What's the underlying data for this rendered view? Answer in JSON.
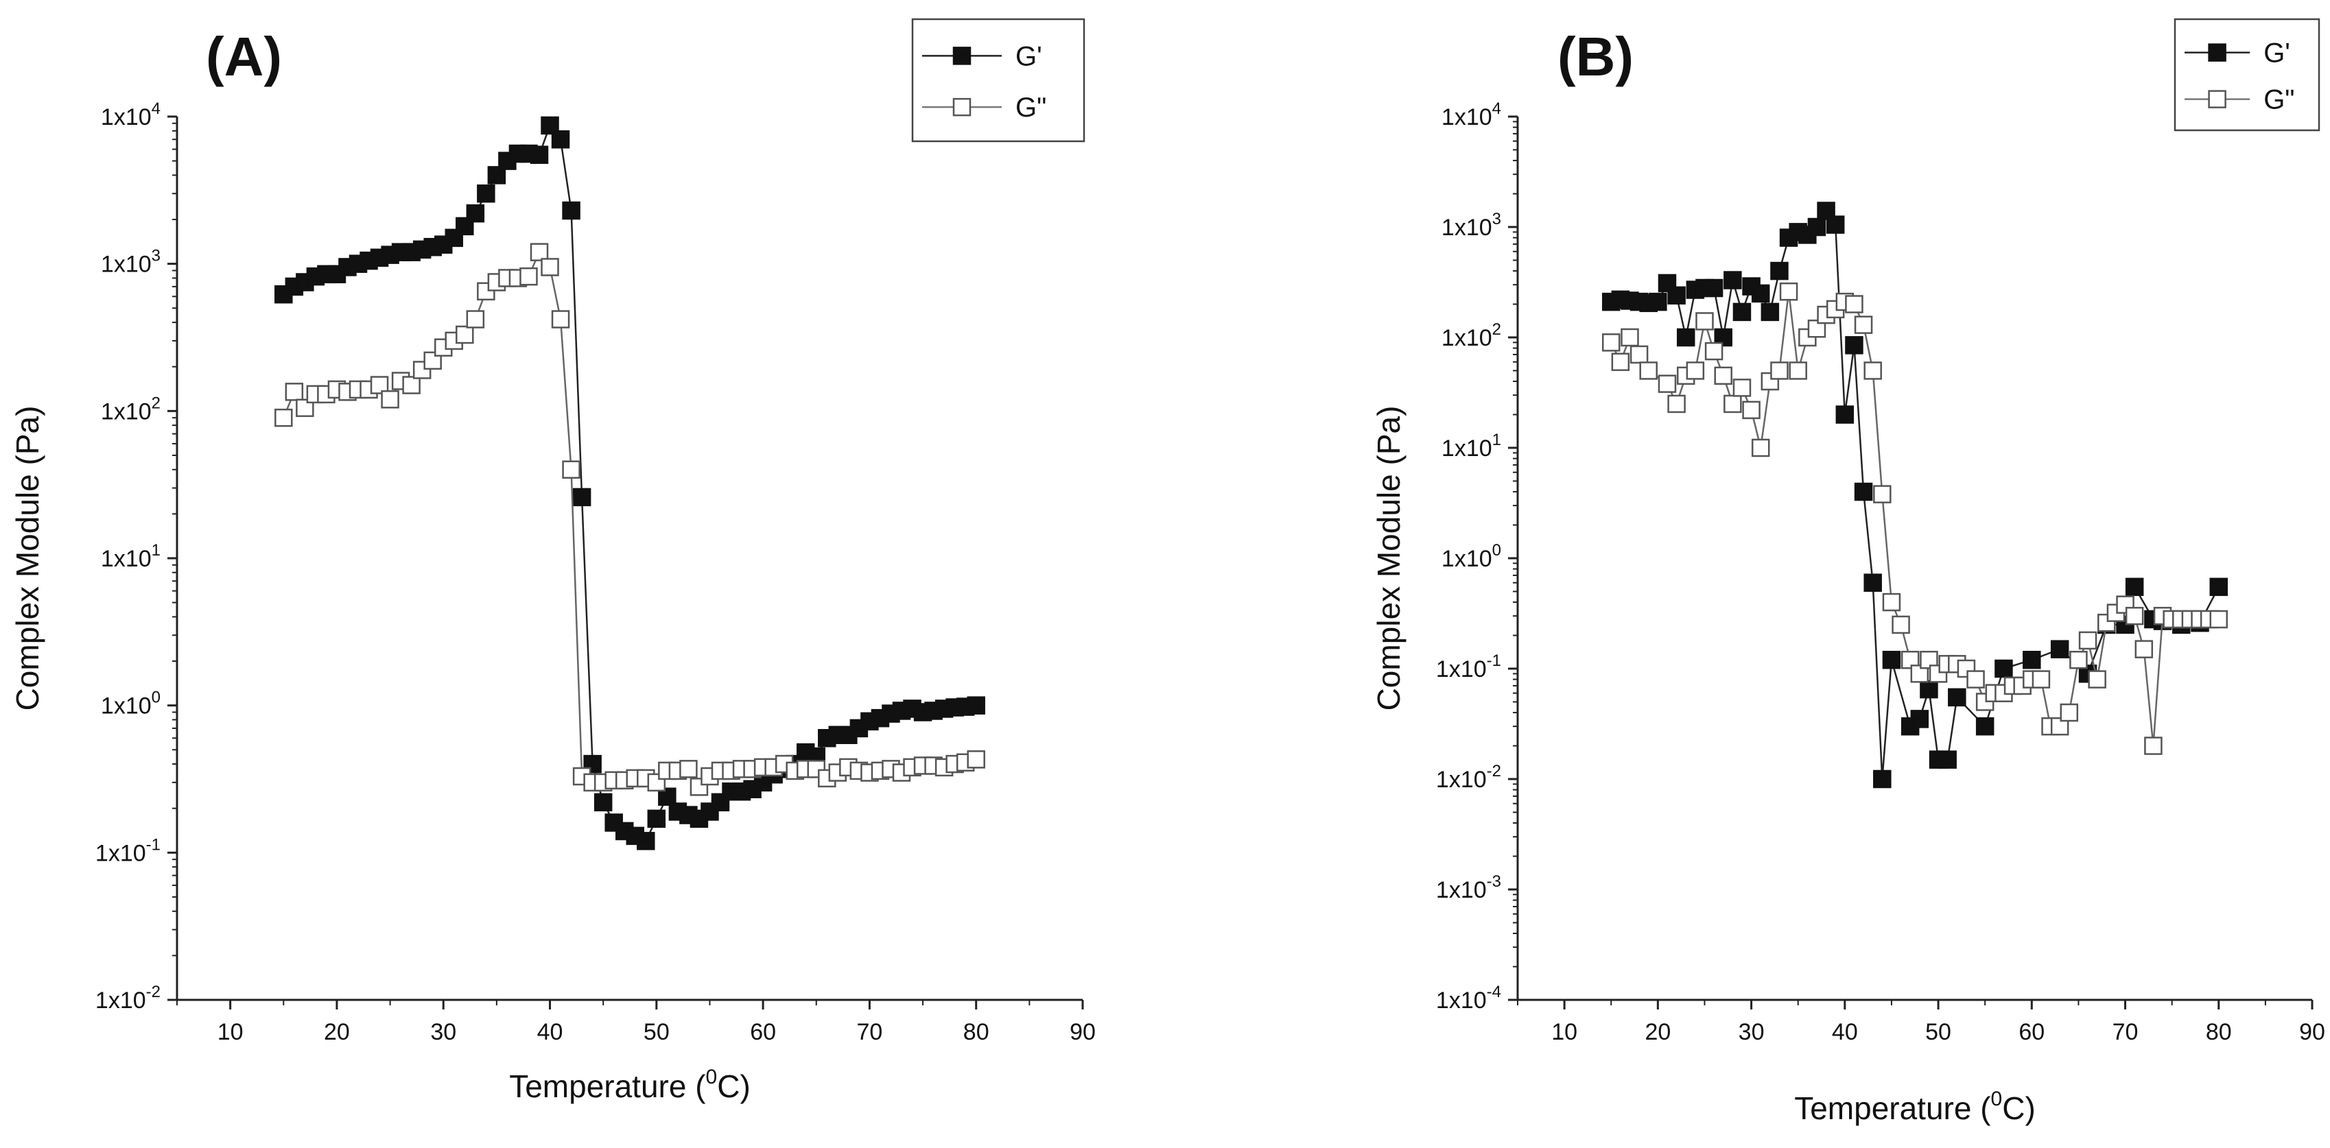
{
  "chart_data": [
    {
      "type": "scatter",
      "panel_label": "(A)",
      "xlabel": "Temperature (",
      "xlabel_sup": "0",
      "xlabel_unit": "C)",
      "ylabel": "Complex Module (Pa)",
      "y_scale": "log",
      "xlim": [
        5,
        90
      ],
      "ylim_exp": [
        -2,
        4
      ],
      "x_ticks": [
        10,
        20,
        30,
        40,
        50,
        60,
        70,
        80,
        90
      ],
      "y_ticks": [
        {
          "base": "1x10",
          "exp": "-2"
        },
        {
          "base": "1x10",
          "exp": "-1"
        },
        {
          "base": "1x10",
          "exp": "0"
        },
        {
          "base": "1x10",
          "exp": "1"
        },
        {
          "base": "1x10",
          "exp": "2"
        },
        {
          "base": "1x10",
          "exp": "3"
        },
        {
          "base": "1x10",
          "exp": "4"
        }
      ],
      "legend_position": "top-right",
      "series": [
        {
          "name": "G'",
          "marker": "filled-square",
          "x": [
            15,
            16,
            17,
            18,
            19,
            20,
            21,
            22,
            23,
            24,
            25,
            26,
            27,
            28,
            29,
            30,
            31,
            32,
            33,
            34,
            35,
            36,
            37,
            38,
            39,
            40,
            41,
            42,
            43,
            44,
            45,
            46,
            47,
            48,
            49,
            50,
            51,
            52,
            53,
            54,
            55,
            56,
            57,
            58,
            59,
            60,
            61,
            62,
            63,
            64,
            65,
            66,
            67,
            68,
            69,
            70,
            71,
            72,
            73,
            74,
            75,
            76,
            77,
            78,
            79,
            80
          ],
          "y": [
            620,
            700,
            750,
            820,
            850,
            850,
            950,
            1000,
            1050,
            1100,
            1150,
            1200,
            1200,
            1250,
            1300,
            1350,
            1500,
            1800,
            2200,
            3000,
            4000,
            5000,
            5600,
            5600,
            5500,
            8700,
            7000,
            2300,
            26,
            0.4,
            0.22,
            0.16,
            0.14,
            0.13,
            0.12,
            0.17,
            0.24,
            0.19,
            0.18,
            0.17,
            0.19,
            0.22,
            0.26,
            0.26,
            0.27,
            0.3,
            0.34,
            0.37,
            0.4,
            0.48,
            0.45,
            0.6,
            0.63,
            0.63,
            0.7,
            0.78,
            0.82,
            0.88,
            0.92,
            0.95,
            0.9,
            0.92,
            0.95,
            0.97,
            0.98,
            1.0
          ]
        },
        {
          "name": "G\"",
          "marker": "open-square",
          "x": [
            15,
            16,
            17,
            18,
            19,
            20,
            21,
            22,
            23,
            24,
            25,
            26,
            27,
            28,
            29,
            30,
            31,
            32,
            33,
            34,
            35,
            36,
            37,
            38,
            39,
            40,
            41,
            42,
            43,
            44,
            45,
            46,
            47,
            48,
            49,
            50,
            51,
            52,
            53,
            54,
            55,
            56,
            57,
            58,
            59,
            60,
            61,
            62,
            63,
            64,
            65,
            66,
            67,
            68,
            69,
            70,
            71,
            72,
            73,
            74,
            75,
            76,
            77,
            78,
            79,
            80
          ],
          "y": [
            90,
            135,
            105,
            130,
            130,
            140,
            135,
            140,
            140,
            150,
            120,
            160,
            150,
            190,
            220,
            270,
            300,
            330,
            420,
            650,
            750,
            800,
            800,
            820,
            1200,
            950,
            420,
            40,
            0.33,
            0.3,
            0.3,
            0.31,
            0.31,
            0.32,
            0.32,
            0.3,
            0.36,
            0.36,
            0.37,
            0.28,
            0.33,
            0.36,
            0.36,
            0.37,
            0.37,
            0.38,
            0.38,
            0.4,
            0.36,
            0.37,
            0.37,
            0.32,
            0.35,
            0.38,
            0.36,
            0.35,
            0.36,
            0.37,
            0.35,
            0.38,
            0.39,
            0.39,
            0.38,
            0.4,
            0.41,
            0.43
          ]
        }
      ]
    },
    {
      "type": "scatter",
      "panel_label": "(B)",
      "xlabel": "Temperature (",
      "xlabel_sup": "0",
      "xlabel_unit": "C)",
      "ylabel": "Complex Module (Pa)",
      "y_scale": "log",
      "xlim": [
        5,
        90
      ],
      "ylim_exp": [
        -4,
        4
      ],
      "x_ticks": [
        10,
        20,
        30,
        40,
        50,
        60,
        70,
        80,
        90
      ],
      "y_ticks": [
        {
          "base": "1x10",
          "exp": "-4"
        },
        {
          "base": "1x10",
          "exp": "-3"
        },
        {
          "base": "1x10",
          "exp": "-2"
        },
        {
          "base": "1x10",
          "exp": "-1"
        },
        {
          "base": "1x10",
          "exp": "0"
        },
        {
          "base": "1x10",
          "exp": "1"
        },
        {
          "base": "1x10",
          "exp": "2"
        },
        {
          "base": "1x10",
          "exp": "3"
        },
        {
          "base": "1x10",
          "exp": "4"
        }
      ],
      "legend_position": "top-right",
      "series": [
        {
          "name": "G'",
          "marker": "filled-square",
          "x": [
            15,
            16,
            17,
            18,
            19,
            20,
            21,
            22,
            23,
            24,
            25,
            26,
            27,
            28,
            29,
            30,
            31,
            32,
            33,
            34,
            35,
            36,
            37,
            38,
            39,
            40,
            41,
            42,
            43,
            44,
            45,
            47,
            48,
            49,
            50,
            51,
            52,
            55,
            57,
            60,
            63,
            66,
            68,
            70,
            71,
            73,
            74,
            76,
            78,
            80
          ],
          "y": [
            210,
            220,
            215,
            210,
            205,
            210,
            310,
            240,
            100,
            270,
            280,
            280,
            100,
            330,
            170,
            290,
            250,
            170,
            400,
            800,
            900,
            850,
            1000,
            1400,
            1050,
            20,
            85,
            4,
            0.6,
            0.01,
            0.12,
            0.03,
            0.035,
            0.065,
            0.015,
            0.015,
            0.055,
            0.03,
            0.1,
            0.12,
            0.15,
            0.09,
            0.25,
            0.25,
            0.55,
            0.28,
            0.27,
            0.25,
            0.26,
            0.55
          ]
        },
        {
          "name": "G\"",
          "marker": "open-square",
          "x": [
            15,
            16,
            17,
            18,
            19,
            21,
            22,
            23,
            24,
            25,
            26,
            27,
            28,
            29,
            30,
            31,
            32,
            33,
            34,
            35,
            36,
            37,
            38,
            39,
            40,
            41,
            42,
            43,
            44,
            45,
            46,
            47,
            48,
            49,
            50,
            51,
            52,
            53,
            54,
            55,
            56,
            57,
            58,
            59,
            60,
            61,
            62,
            63,
            64,
            65,
            66,
            67,
            68,
            69,
            70,
            71,
            72,
            73,
            74,
            75,
            76,
            77,
            78,
            79,
            80
          ],
          "y": [
            90,
            60,
            100,
            70,
            50,
            38,
            25,
            45,
            50,
            140,
            75,
            45,
            25,
            35,
            22,
            10,
            40,
            50,
            260,
            50,
            100,
            120,
            160,
            180,
            210,
            200,
            130,
            50,
            3.8,
            0.4,
            0.25,
            0.12,
            0.09,
            0.12,
            0.09,
            0.11,
            0.11,
            0.1,
            0.08,
            0.05,
            0.06,
            0.06,
            0.07,
            0.07,
            0.08,
            0.08,
            0.03,
            0.03,
            0.04,
            0.12,
            0.18,
            0.08,
            0.26,
            0.32,
            0.38,
            0.3,
            0.15,
            0.02,
            0.3,
            0.28,
            0.28,
            0.28,
            0.28,
            0.28,
            0.28
          ]
        }
      ]
    }
  ]
}
